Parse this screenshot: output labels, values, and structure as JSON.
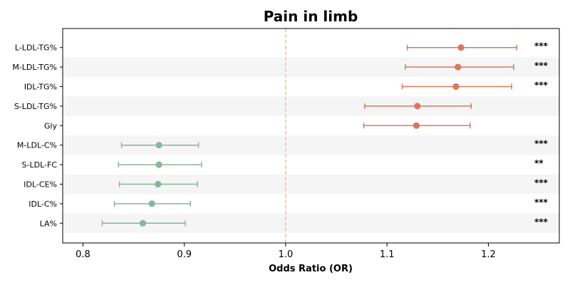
{
  "chart_data": {
    "type": "forest",
    "title": "Pain in limb",
    "xlabel": "Odds Ratio (OR)",
    "xlim": [
      0.78,
      1.27
    ],
    "xticks": [
      "0.8",
      "0.9",
      "1.0",
      "1.1",
      "1.2"
    ],
    "reference_line": 1.0,
    "colors": {
      "risk": "#d9785e",
      "protective": "#87b59e",
      "reference": "#f0c987",
      "band": "#f5f5f5",
      "axis": "#000000"
    },
    "rows": [
      {
        "label": "L-LDL-TG%",
        "or": 1.173,
        "lo": 1.12,
        "hi": 1.228,
        "sig": "***"
      },
      {
        "label": "M-LDL-TG%",
        "or": 1.17,
        "lo": 1.118,
        "hi": 1.225,
        "sig": "***"
      },
      {
        "label": "IDL-TG%",
        "or": 1.168,
        "lo": 1.115,
        "hi": 1.223,
        "sig": "***"
      },
      {
        "label": "S-LDL-TG%",
        "or": 1.13,
        "lo": 1.078,
        "hi": 1.183,
        "sig": ""
      },
      {
        "label": "Gly",
        "or": 1.129,
        "lo": 1.077,
        "hi": 1.182,
        "sig": ""
      },
      {
        "label": "M-LDL-C%",
        "or": 0.875,
        "lo": 0.838,
        "hi": 0.914,
        "sig": "***"
      },
      {
        "label": "S-LDL-FC",
        "or": 0.875,
        "lo": 0.835,
        "hi": 0.917,
        "sig": "**"
      },
      {
        "label": "IDL-CE%",
        "or": 0.874,
        "lo": 0.836,
        "hi": 0.913,
        "sig": "***"
      },
      {
        "label": "IDL-C%",
        "or": 0.868,
        "lo": 0.831,
        "hi": 0.906,
        "sig": "***"
      },
      {
        "label": "LA%",
        "or": 0.859,
        "lo": 0.819,
        "hi": 0.901,
        "sig": "***"
      }
    ]
  }
}
